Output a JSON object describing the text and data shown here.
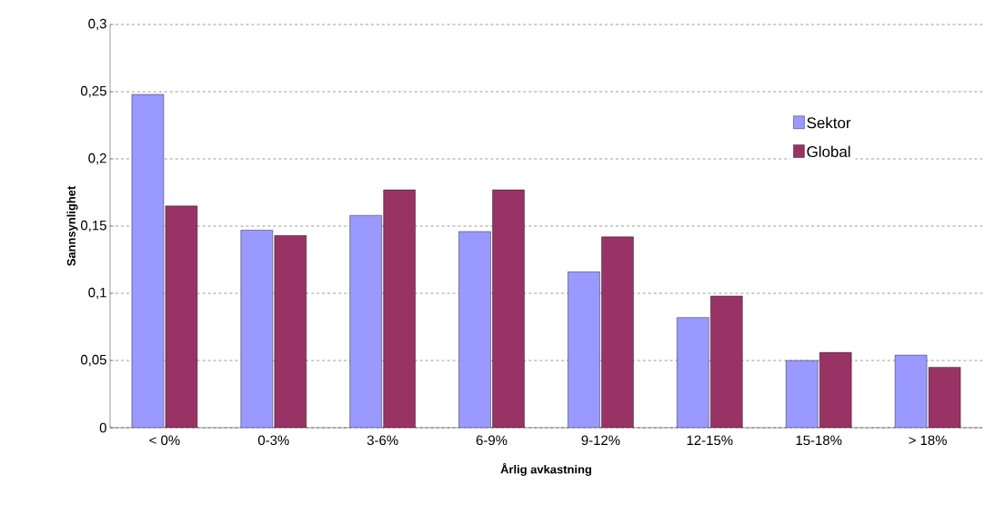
{
  "chart_data": {
    "type": "bar",
    "xlabel": "Årlig avkastning",
    "ylabel": "Sannsynlighet",
    "categories": [
      "< 0%",
      "0-3%",
      "3-6%",
      "6-9%",
      "9-12%",
      "12-15%",
      "15-18%",
      "> 18%"
    ],
    "series": [
      {
        "name": "Sektor",
        "color": "#9999ff",
        "values": [
          0.248,
          0.147,
          0.158,
          0.146,
          0.116,
          0.082,
          0.05,
          0.054
        ]
      },
      {
        "name": "Global",
        "color": "#993366",
        "values": [
          0.165,
          0.143,
          0.177,
          0.177,
          0.142,
          0.098,
          0.056,
          0.045
        ]
      }
    ],
    "ylim": [
      0,
      0.3
    ],
    "yticks": [
      {
        "value": 0,
        "label": "0"
      },
      {
        "value": 0.05,
        "label": "0,05"
      },
      {
        "value": 0.1,
        "label": "0,1"
      },
      {
        "value": 0.15,
        "label": "0,15"
      },
      {
        "value": 0.2,
        "label": "0,2"
      },
      {
        "value": 0.25,
        "label": "0,25"
      },
      {
        "value": 0.3,
        "label": "0,3"
      }
    ],
    "grid": "y",
    "legend": "right"
  }
}
